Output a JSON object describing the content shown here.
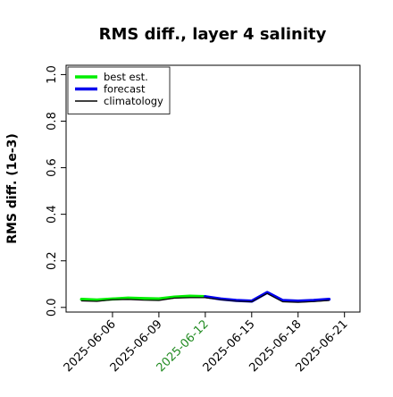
{
  "chart_data": {
    "type": "line",
    "title": "RMS diff., layer 4 salinity",
    "xlabel": "",
    "ylabel": "RMS diff. (1e-3)",
    "ylim": [
      -0.02,
      1.04
    ],
    "xlim": [
      "2025-06-03",
      "2025-06-22"
    ],
    "yticks": [
      0.0,
      0.2,
      0.4,
      0.6,
      0.8,
      1.0
    ],
    "ytick_labels": [
      "0.0",
      "0.2",
      "0.4",
      "0.6",
      "0.8",
      "1.0"
    ],
    "xticks": [
      "2025-06-06",
      "2025-06-09",
      "2025-06-12",
      "2025-06-15",
      "2025-06-18",
      "2025-06-21"
    ],
    "xtick_labels": [
      "2025-06-06",
      "2025-06-09",
      "2025-06-12",
      "2025-06-15",
      "2025-06-18",
      "2025-06-21"
    ],
    "highlighted_xtick": "2025-06-12",
    "highlight_color": "#228B22",
    "grid": false,
    "legend_position": "top-left",
    "series": [
      {
        "name": "best est.",
        "color": "#00ee00",
        "dates": [
          "2025-06-04",
          "2025-06-05",
          "2025-06-06",
          "2025-06-07",
          "2025-06-08",
          "2025-06-09",
          "2025-06-10",
          "2025-06-11",
          "2025-06-12"
        ],
        "values": [
          0.035,
          0.032,
          0.036,
          0.04,
          0.038,
          0.037,
          0.044,
          0.048,
          0.046
        ]
      },
      {
        "name": "forecast",
        "color": "#0000ee",
        "dates": [
          "2025-06-12",
          "2025-06-13",
          "2025-06-14",
          "2025-06-15",
          "2025-06-16",
          "2025-06-17",
          "2025-06-18",
          "2025-06-19",
          "2025-06-20"
        ],
        "values": [
          0.046,
          0.036,
          0.03,
          0.027,
          0.064,
          0.03,
          0.027,
          0.03,
          0.035
        ]
      },
      {
        "name": "climatology",
        "color": "#000000",
        "dates": [
          "2025-06-04",
          "2025-06-05",
          "2025-06-06",
          "2025-06-07",
          "2025-06-08",
          "2025-06-09",
          "2025-06-10",
          "2025-06-11",
          "2025-06-12",
          "2025-06-13",
          "2025-06-14",
          "2025-06-15",
          "2025-06-16",
          "2025-06-17",
          "2025-06-18",
          "2025-06-19",
          "2025-06-20"
        ],
        "values": [
          0.028,
          0.026,
          0.033,
          0.034,
          0.031,
          0.03,
          0.04,
          0.042,
          0.042,
          0.033,
          0.027,
          0.024,
          0.06,
          0.024,
          0.022,
          0.025,
          0.03
        ]
      }
    ]
  }
}
